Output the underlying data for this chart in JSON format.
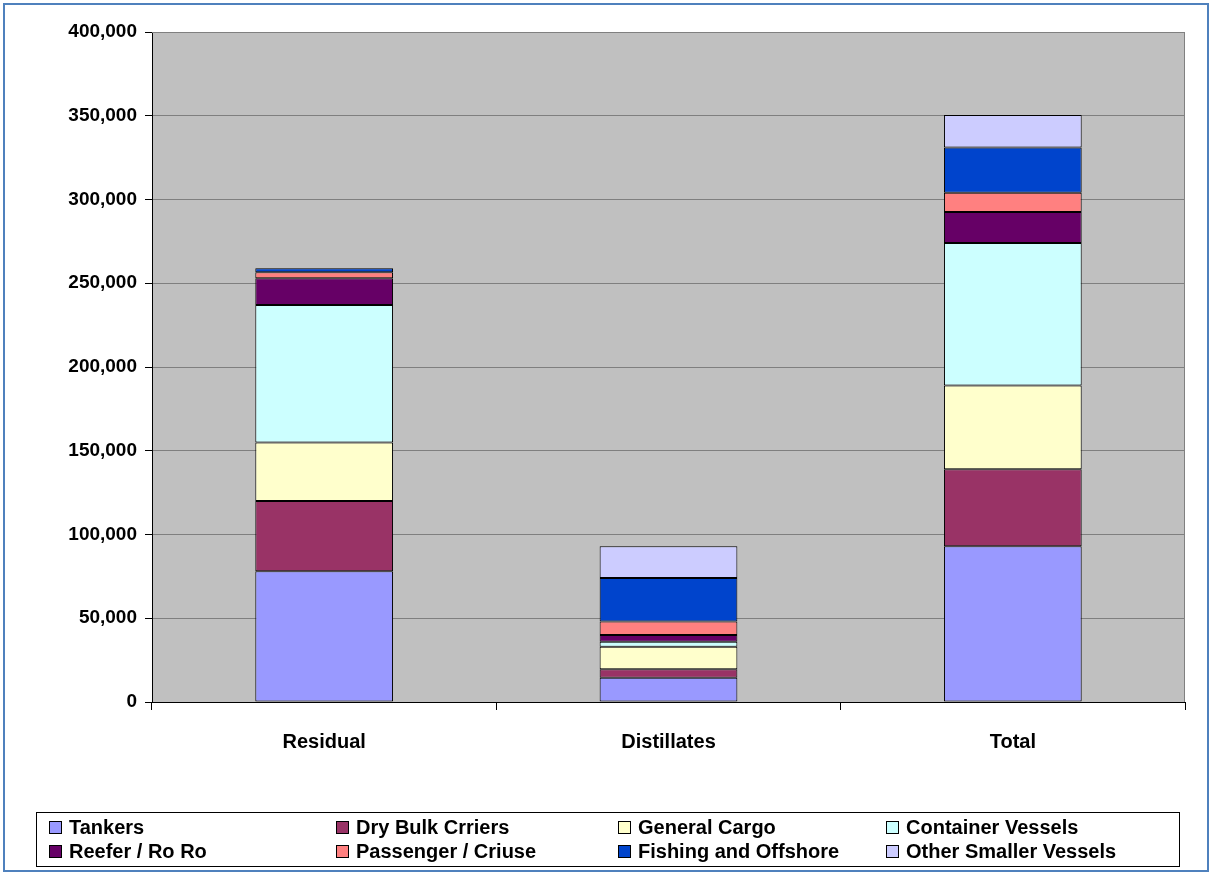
{
  "chart_data": {
    "type": "bar",
    "stacked": true,
    "categories": [
      "Residual",
      "Distillates",
      "Total"
    ],
    "series": [
      {
        "name": "Tankers",
        "color": "#9999ff",
        "values": [
          78000,
          14500,
          93000
        ]
      },
      {
        "name": "Dry Bulk Crriers",
        "color": "#993366",
        "values": [
          42000,
          5000,
          46000
        ]
      },
      {
        "name": "General Cargo",
        "color": "#ffffcc",
        "values": [
          35000,
          13500,
          50000
        ]
      },
      {
        "name": "Container Vessels",
        "color": "#ccffff",
        "values": [
          82000,
          3000,
          85000
        ]
      },
      {
        "name": "Reefer / Ro Ro",
        "color": "#660066",
        "values": [
          16000,
          4000,
          18500
        ]
      },
      {
        "name": "Passenger / Criuse",
        "color": "#ff8080",
        "values": [
          3500,
          8000,
          11500
        ]
      },
      {
        "name": "Fishing and Offshore",
        "color": "#0044cc",
        "values": [
          2500,
          26000,
          27000
        ]
      },
      {
        "name": "Other Smaller Vessels",
        "color": "#ccccff",
        "values": [
          null,
          19000,
          19500
        ]
      }
    ],
    "ylim": [
      0,
      400000
    ],
    "yticks": [
      0,
      {
        "value": 50000,
        "label": "50,000"
      },
      {
        "value": 100000,
        "label": "100,000"
      },
      {
        "value": 150000,
        "label": "150,000"
      },
      {
        "value": 200000,
        "label": "200,000"
      },
      {
        "value": 250000,
        "label": "250,000"
      },
      {
        "value": 300000,
        "label": "300,000"
      },
      {
        "value": 350000,
        "label": "350,000"
      },
      {
        "value": 400000,
        "label": "400,000"
      }
    ],
    "grid": "y",
    "legend": "bottom"
  }
}
